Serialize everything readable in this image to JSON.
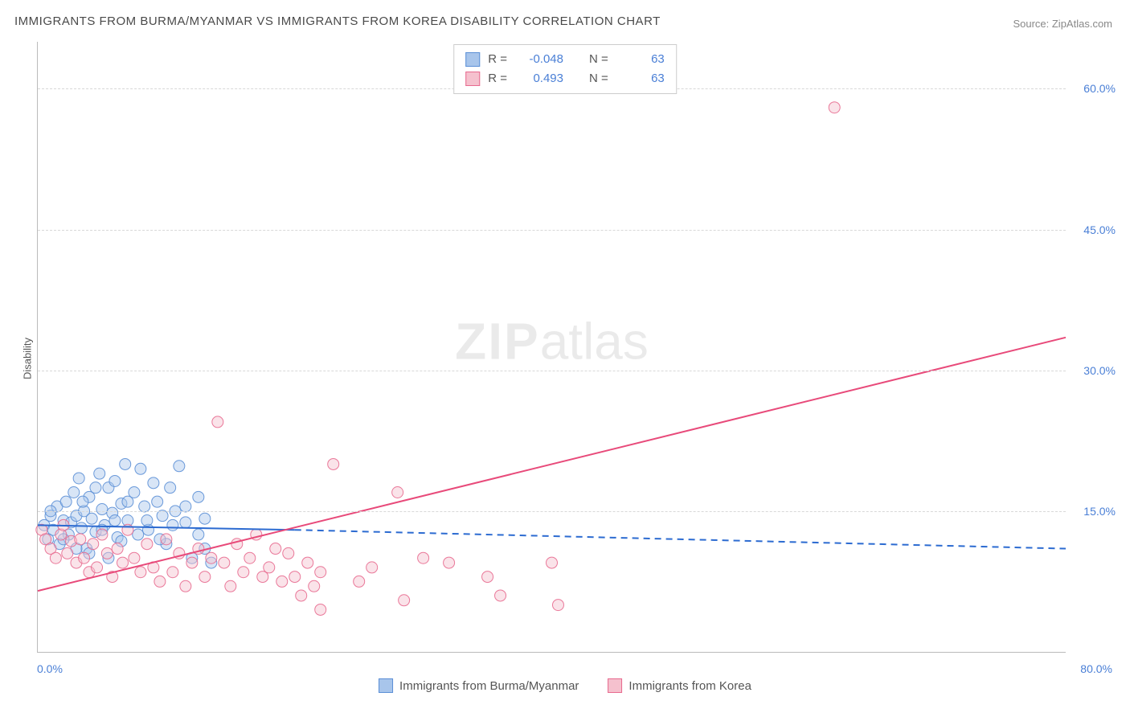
{
  "title": "IMMIGRANTS FROM BURMA/MYANMAR VS IMMIGRANTS FROM KOREA DISABILITY CORRELATION CHART",
  "source": "Source: ZipAtlas.com",
  "ylabel": "Disability",
  "watermark_zip": "ZIP",
  "watermark_atlas": "atlas",
  "chart": {
    "type": "scatter-correlation",
    "xlim": [
      0,
      80
    ],
    "ylim": [
      0,
      65
    ],
    "x_tick_min": "0.0%",
    "x_tick_max": "80.0%",
    "y_gridlines": [
      15,
      30,
      45,
      60
    ],
    "y_tick_labels": [
      "15.0%",
      "30.0%",
      "45.0%",
      "60.0%"
    ],
    "background_color": "#ffffff",
    "grid_color": "#d8d8d8",
    "axis_color": "#bbbbbb",
    "tick_label_color": "#4a7fd6",
    "marker_radius": 7,
    "marker_opacity": 0.45,
    "marker_stroke_opacity": 0.9,
    "line_width": 2
  },
  "series": [
    {
      "name": "Immigrants from Burma/Myanmar",
      "color_fill": "#a8c5eb",
      "color_stroke": "#5b8fd6",
      "line_color": "#2c6bd1",
      "r": "-0.048",
      "n": "63",
      "trend": {
        "x1": 0,
        "y1": 13.5,
        "x2_solid": 20,
        "y2_solid": 13.0,
        "x2": 80,
        "y2": 11.0
      },
      "points": [
        [
          0.5,
          13.5
        ],
        [
          0.8,
          12.0
        ],
        [
          1.0,
          14.5
        ],
        [
          1.2,
          13.0
        ],
        [
          1.5,
          15.5
        ],
        [
          1.7,
          11.5
        ],
        [
          2.0,
          14.0
        ],
        [
          2.2,
          16.0
        ],
        [
          2.4,
          12.5
        ],
        [
          2.6,
          13.8
        ],
        [
          2.8,
          17.0
        ],
        [
          3.0,
          14.5
        ],
        [
          3.2,
          18.5
        ],
        [
          3.4,
          13.2
        ],
        [
          3.6,
          15.0
        ],
        [
          3.8,
          11.0
        ],
        [
          4.0,
          16.5
        ],
        [
          4.2,
          14.2
        ],
        [
          4.5,
          12.8
        ],
        [
          4.8,
          19.0
        ],
        [
          5.0,
          15.2
        ],
        [
          5.2,
          13.5
        ],
        [
          5.5,
          17.5
        ],
        [
          5.8,
          14.8
        ],
        [
          6.0,
          18.2
        ],
        [
          6.2,
          12.2
        ],
        [
          6.5,
          15.8
        ],
        [
          6.8,
          20.0
        ],
        [
          7.0,
          14.0
        ],
        [
          7.5,
          17.0
        ],
        [
          8.0,
          19.5
        ],
        [
          8.3,
          15.5
        ],
        [
          8.6,
          13.0
        ],
        [
          9.0,
          18.0
        ],
        [
          9.3,
          16.0
        ],
        [
          9.7,
          14.5
        ],
        [
          10.0,
          11.5
        ],
        [
          10.3,
          17.5
        ],
        [
          10.7,
          15.0
        ],
        [
          11.0,
          19.8
        ],
        [
          11.5,
          13.8
        ],
        [
          12.0,
          10.0
        ],
        [
          12.5,
          16.5
        ],
        [
          13.0,
          14.2
        ],
        [
          13.5,
          9.5
        ],
        [
          3.0,
          11.0
        ],
        [
          4.0,
          10.5
        ],
        [
          5.5,
          10.0
        ],
        [
          6.5,
          11.8
        ],
        [
          7.8,
          12.5
        ],
        [
          1.0,
          15.0
        ],
        [
          2.0,
          12.0
        ],
        [
          3.5,
          16.0
        ],
        [
          4.5,
          17.5
        ],
        [
          5.0,
          13.0
        ],
        [
          6.0,
          14.0
        ],
        [
          7.0,
          16.0
        ],
        [
          8.5,
          14.0
        ],
        [
          9.5,
          12.0
        ],
        [
          10.5,
          13.5
        ],
        [
          11.5,
          15.5
        ],
        [
          12.5,
          12.5
        ],
        [
          13.0,
          11.0
        ]
      ]
    },
    {
      "name": "Immigrants from Korea",
      "color_fill": "#f5c1ce",
      "color_stroke": "#e86a8f",
      "line_color": "#e84a7a",
      "r": "0.493",
      "n": "63",
      "trend": {
        "x1": 0,
        "y1": 6.5,
        "x2_solid": 80,
        "y2_solid": 33.5,
        "x2": 80,
        "y2": 33.5
      },
      "points": [
        [
          0.3,
          13.0
        ],
        [
          0.6,
          12.0
        ],
        [
          1.0,
          11.0
        ],
        [
          1.4,
          10.0
        ],
        [
          1.8,
          12.5
        ],
        [
          2.0,
          13.5
        ],
        [
          2.3,
          10.5
        ],
        [
          2.6,
          11.8
        ],
        [
          3.0,
          9.5
        ],
        [
          3.3,
          12.0
        ],
        [
          3.6,
          10.0
        ],
        [
          4.0,
          8.5
        ],
        [
          4.3,
          11.5
        ],
        [
          4.6,
          9.0
        ],
        [
          5.0,
          12.5
        ],
        [
          5.4,
          10.5
        ],
        [
          5.8,
          8.0
        ],
        [
          6.2,
          11.0
        ],
        [
          6.6,
          9.5
        ],
        [
          7.0,
          13.0
        ],
        [
          7.5,
          10.0
        ],
        [
          8.0,
          8.5
        ],
        [
          8.5,
          11.5
        ],
        [
          9.0,
          9.0
        ],
        [
          9.5,
          7.5
        ],
        [
          10.0,
          12.0
        ],
        [
          10.5,
          8.5
        ],
        [
          11.0,
          10.5
        ],
        [
          11.5,
          7.0
        ],
        [
          12.0,
          9.5
        ],
        [
          12.5,
          11.0
        ],
        [
          13.0,
          8.0
        ],
        [
          13.5,
          10.0
        ],
        [
          14.0,
          24.5
        ],
        [
          14.5,
          9.5
        ],
        [
          15.0,
          7.0
        ],
        [
          15.5,
          11.5
        ],
        [
          16.0,
          8.5
        ],
        [
          16.5,
          10.0
        ],
        [
          17.0,
          12.5
        ],
        [
          17.5,
          8.0
        ],
        [
          18.0,
          9.0
        ],
        [
          18.5,
          11.0
        ],
        [
          19.0,
          7.5
        ],
        [
          19.5,
          10.5
        ],
        [
          20.0,
          8.0
        ],
        [
          20.5,
          6.0
        ],
        [
          21.0,
          9.5
        ],
        [
          21.5,
          7.0
        ],
        [
          22.0,
          8.5
        ],
        [
          22.0,
          4.5
        ],
        [
          23.0,
          20.0
        ],
        [
          25.0,
          7.5
        ],
        [
          26.0,
          9.0
        ],
        [
          28.0,
          17.0
        ],
        [
          28.5,
          5.5
        ],
        [
          30.0,
          10.0
        ],
        [
          32.0,
          9.5
        ],
        [
          35.0,
          8.0
        ],
        [
          36.0,
          6.0
        ],
        [
          40.0,
          9.5
        ],
        [
          40.5,
          5.0
        ],
        [
          62.0,
          58.0
        ]
      ]
    }
  ],
  "legend_labels": {
    "r_prefix": "R = ",
    "n_prefix": "N = "
  }
}
